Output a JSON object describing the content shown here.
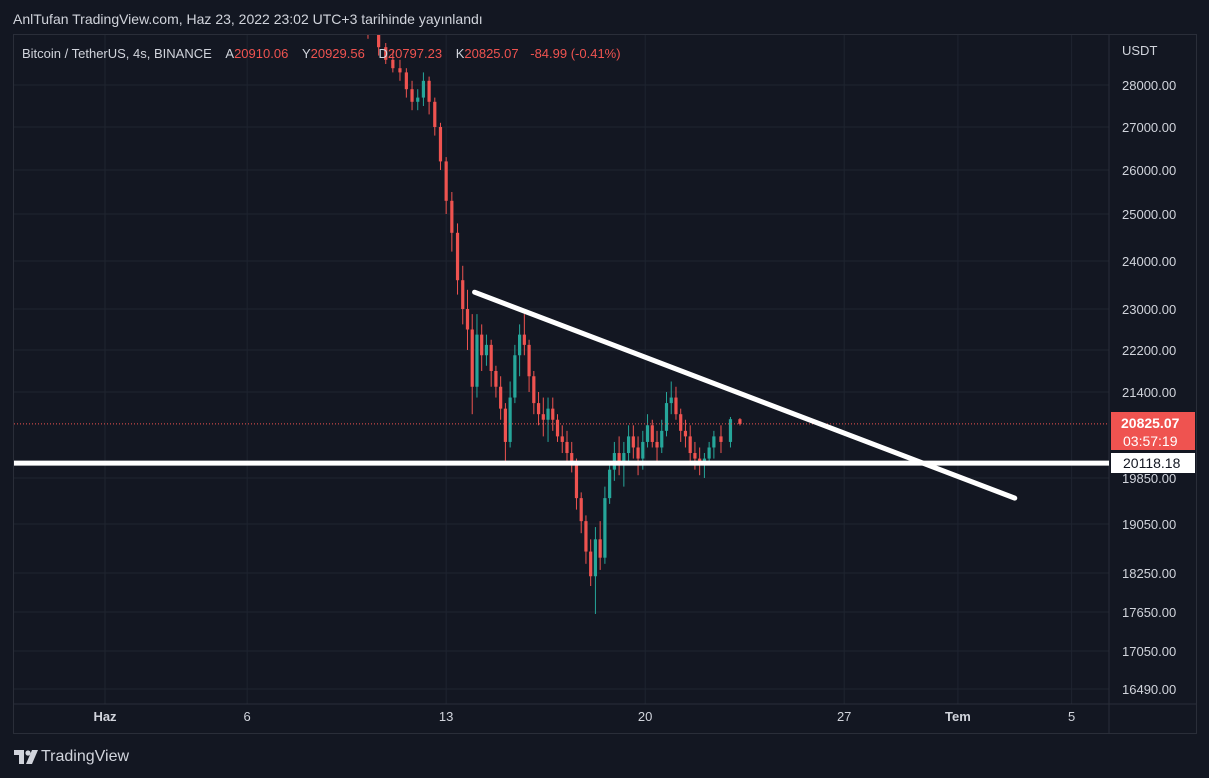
{
  "header": {
    "title": "AnlTufan TradingView.com, Haz 23, 2022 23:02 UTC+3 tarihinde yayınlandı"
  },
  "legend": {
    "symbol": "Bitcoin / TetherUS, 4s, BINANCE",
    "open_label": "A",
    "open": "20910.06",
    "high_label": "Y",
    "high": "20929.56",
    "low_label": "D",
    "low": "20797.23",
    "close_label": "K",
    "close": "20825.07",
    "change": "-84.99 (-0.41%)"
  },
  "axis": {
    "currency": "USDT",
    "price_ticks": [
      "28000.00",
      "27000.00",
      "26000.00",
      "25000.00",
      "24000.00",
      "23000.00",
      "22200.00",
      "21400.00",
      "19850.00",
      "19050.00",
      "18250.00",
      "17650.00",
      "17050.00",
      "16490.00"
    ],
    "date_ticks": [
      "Haz",
      "6",
      "13",
      "20",
      "27",
      "Tem",
      "5"
    ]
  },
  "current_price": {
    "price": "20825.07",
    "countdown": "03:57:19"
  },
  "support_level": {
    "price": "20118.18"
  },
  "footer": {
    "brand": "TradingView"
  },
  "colors": {
    "background": "#131722",
    "up": "#26a69a",
    "down": "#ef5350",
    "grid": "#1f2430",
    "text": "#d1d4dc",
    "drawing": "#ffffff"
  },
  "chart_data": {
    "type": "candlestick",
    "title": "Bitcoin / TetherUS, 4s, BINANCE",
    "price_ticks": [
      28000,
      27000,
      26000,
      25000,
      24000,
      23000,
      22200,
      21400,
      19850,
      19050,
      18250,
      17650,
      17050,
      16490
    ],
    "x_ticks": [
      "Haz",
      "6",
      "13",
      "20",
      "27",
      "Tem",
      "5"
    ],
    "support_line": {
      "price": 20118.18
    },
    "trend_line": {
      "from": {
        "date": "Jun 14",
        "price": 23350
      },
      "to": {
        "date": "Jul 3",
        "price": 19500
      }
    },
    "current_price": 20825.07,
    "ohlc": [
      [
        "Jun 10",
        29500,
        29700,
        29200,
        29600
      ],
      [
        "Jun 10",
        29600,
        29650,
        29100,
        29200
      ],
      [
        "Jun 11",
        29200,
        29300,
        28700,
        28900
      ],
      [
        "Jun 11",
        28900,
        29000,
        28500,
        28600
      ],
      [
        "Jun 11",
        28600,
        28800,
        28300,
        28400
      ],
      [
        "Jun 11",
        28400,
        28600,
        28100,
        28300
      ],
      [
        "Jun 12",
        28300,
        28400,
        27700,
        27900
      ],
      [
        "Jun 12",
        27900,
        28100,
        27400,
        27600
      ],
      [
        "Jun 12",
        27600,
        27900,
        27400,
        27700
      ],
      [
        "Jun 12",
        27700,
        28300,
        27500,
        28100
      ],
      [
        "Jun 12",
        28100,
        28200,
        27300,
        27600
      ],
      [
        "Jun 13",
        27600,
        27700,
        26800,
        27000
      ],
      [
        "Jun 13",
        27000,
        27100,
        26000,
        26200
      ],
      [
        "Jun 13",
        26200,
        26300,
        25000,
        25300
      ],
      [
        "Jun 13",
        25300,
        25500,
        24200,
        24600
      ],
      [
        "Jun 13",
        24600,
        24800,
        23300,
        23600
      ],
      [
        "Jun 14",
        23600,
        23900,
        22700,
        23000
      ],
      [
        "Jun 14",
        23000,
        23400,
        22200,
        22600
      ],
      [
        "Jun 14",
        22600,
        22900,
        21000,
        21500
      ],
      [
        "Jun 14",
        21500,
        22900,
        21300,
        22500
      ],
      [
        "Jun 14",
        22500,
        22700,
        21800,
        22100
      ],
      [
        "Jun 14",
        22100,
        22500,
        21900,
        22300
      ],
      [
        "Jun 15",
        22300,
        22400,
        21500,
        21800
      ],
      [
        "Jun 15",
        21800,
        21900,
        21300,
        21500
      ],
      [
        "Jun 15",
        21500,
        21700,
        20900,
        21100
      ],
      [
        "Jun 15",
        21100,
        21200,
        20100,
        20500
      ],
      [
        "Jun 15",
        20500,
        21600,
        20400,
        21300
      ],
      [
        "Jun 15",
        21300,
        22300,
        21200,
        22100
      ],
      [
        "Jun 16",
        22100,
        22700,
        21700,
        22500
      ],
      [
        "Jun 16",
        22500,
        22900,
        22100,
        22300
      ],
      [
        "Jun 16",
        22300,
        22400,
        21400,
        21700
      ],
      [
        "Jun 16",
        21700,
        21800,
        21000,
        21200
      ],
      [
        "Jun 16",
        21200,
        21400,
        20800,
        21000
      ],
      [
        "Jun 16",
        21000,
        21300,
        20600,
        20900
      ],
      [
        "Jun 17",
        20900,
        21300,
        20500,
        21100
      ],
      [
        "Jun 17",
        21100,
        21300,
        20700,
        20900
      ],
      [
        "Jun 17",
        20900,
        21000,
        20500,
        20600
      ],
      [
        "Jun 17",
        20600,
        20800,
        20300,
        20500
      ],
      [
        "Jun 17",
        20500,
        20700,
        20100,
        20300
      ],
      [
        "Jun 17",
        20300,
        20500,
        19950,
        20100
      ],
      [
        "Jun 18",
        20100,
        20200,
        19300,
        19500
      ],
      [
        "Jun 18",
        19500,
        19600,
        18900,
        19100
      ],
      [
        "Jun 18",
        19100,
        19200,
        18400,
        18600
      ],
      [
        "Jun 18",
        18600,
        18800,
        18050,
        18200
      ],
      [
        "Jun 18",
        18200,
        19000,
        17620,
        18800
      ],
      [
        "Jun 18",
        18800,
        19100,
        18300,
        18500
      ],
      [
        "Jun 19",
        18500,
        19700,
        18400,
        19500
      ],
      [
        "Jun 19",
        19500,
        20100,
        19400,
        20000
      ],
      [
        "Jun 19",
        20000,
        20500,
        19800,
        20300
      ],
      [
        "Jun 19",
        20300,
        20600,
        19900,
        20100
      ],
      [
        "Jun 19",
        20100,
        20500,
        19700,
        20300
      ],
      [
        "Jun 19",
        20300,
        20800,
        20100,
        20600
      ],
      [
        "Jun 20",
        20600,
        20800,
        20200,
        20400
      ],
      [
        "Jun 20",
        20400,
        20600,
        19900,
        20200
      ],
      [
        "Jun 20",
        20200,
        20700,
        20000,
        20500
      ],
      [
        "Jun 20",
        20500,
        21000,
        20400,
        20800
      ],
      [
        "Jun 20",
        20800,
        20900,
        20400,
        20500
      ],
      [
        "Jun 20",
        20500,
        20700,
        20100,
        20400
      ],
      [
        "Jun 21",
        20400,
        20900,
        20300,
        20700
      ],
      [
        "Jun 21",
        20700,
        21400,
        20600,
        21200
      ],
      [
        "Jun 21",
        21200,
        21600,
        21000,
        21300
      ],
      [
        "Jun 21",
        21300,
        21500,
        20900,
        21000
      ],
      [
        "Jun 21",
        21000,
        21100,
        20500,
        20700
      ],
      [
        "Jun 21",
        20700,
        20900,
        20400,
        20600
      ],
      [
        "Jun 22",
        20600,
        20800,
        20100,
        20300
      ],
      [
        "Jun 22",
        20300,
        20500,
        20000,
        20200
      ],
      [
        "Jun 22",
        20200,
        20400,
        19900,
        20100
      ],
      [
        "Jun 22",
        20100,
        20300,
        19850,
        20200
      ],
      [
        "Jun 22",
        20200,
        20500,
        20100,
        20400
      ],
      [
        "Jun 22",
        20400,
        20700,
        20200,
        20600
      ],
      [
        "Jun 23",
        20600,
        20800,
        20300,
        20500
      ],
      [
        "Jun 23",
        20500,
        20950,
        20400,
        20910
      ],
      [
        "Jun 23",
        20910.06,
        20929.56,
        20797.23,
        20825.07
      ]
    ]
  }
}
